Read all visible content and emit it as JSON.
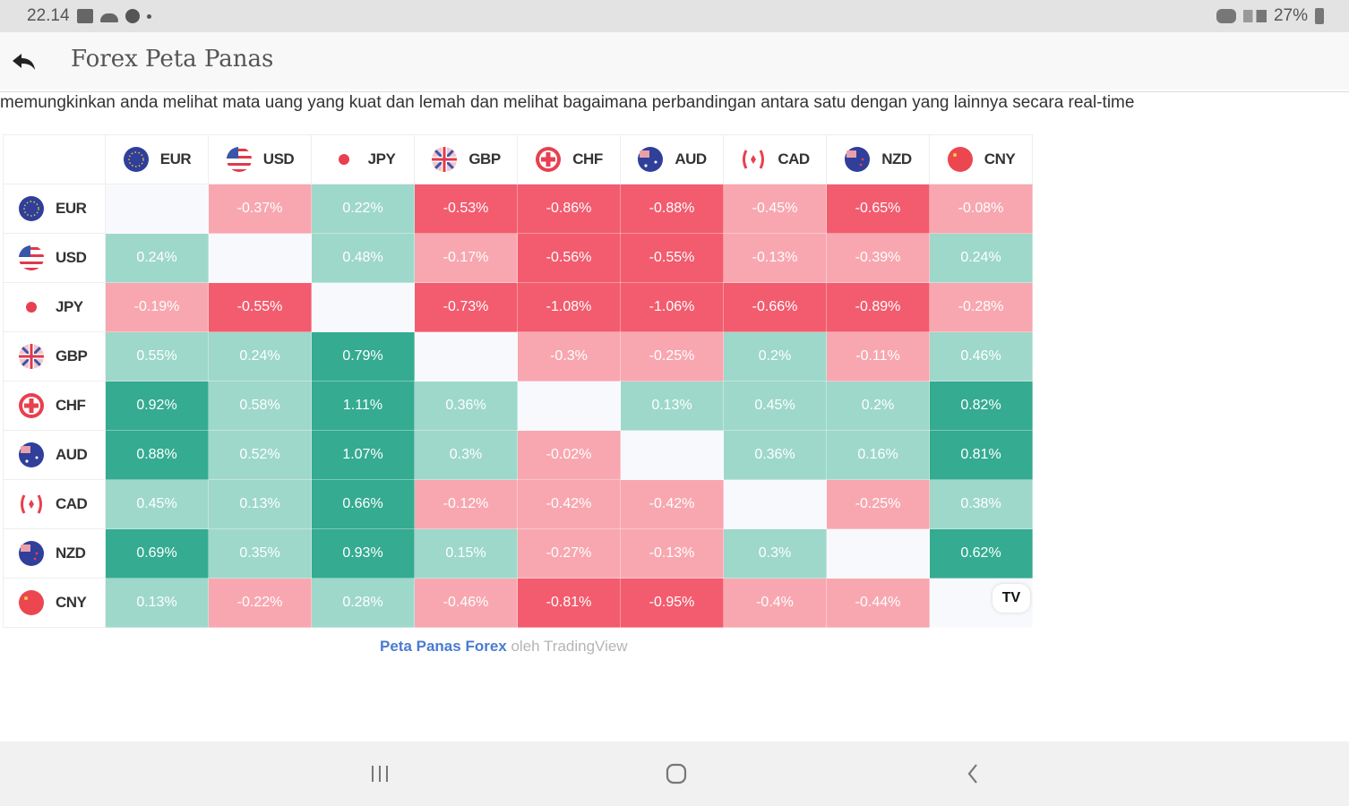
{
  "status_bar": {
    "time": "22.14",
    "battery": "27%",
    "left_icons": [
      "gallery-icon",
      "cloud-icon",
      "vpn-icon",
      "dot-icon"
    ],
    "right_icons": [
      "gamepad-icon",
      "signal-icon",
      "battery-icon"
    ]
  },
  "app_bar": {
    "back_icon": "reply-arrow-icon",
    "title": "Forex Peta Panas"
  },
  "description": "memungkinkan anda melihat mata uang yang kuat dan lemah dan melihat bagaimana perbandingan antara satu dengan yang lainnya secara real-time",
  "colors": {
    "strong_negative": "#f25c6e",
    "weak_negative": "#f8a7b0",
    "weak_positive": "#9ed8ca",
    "strong_positive": "#35ab91",
    "empty": "#f8f9fc",
    "link": "#4a7bd0"
  },
  "chart_data": {
    "type": "heatmap",
    "title": "Forex Peta Panas",
    "x_labels": [
      "EUR",
      "USD",
      "JPY",
      "GBP",
      "CHF",
      "AUD",
      "CAD",
      "NZD",
      "CNY"
    ],
    "y_labels": [
      "EUR",
      "USD",
      "JPY",
      "GBP",
      "CHF",
      "AUD",
      "CAD",
      "NZD",
      "CNY"
    ],
    "unit": "%",
    "values": [
      [
        null,
        -0.37,
        0.22,
        -0.53,
        -0.86,
        -0.88,
        -0.45,
        -0.65,
        -0.08
      ],
      [
        0.24,
        null,
        0.48,
        -0.17,
        -0.56,
        -0.55,
        -0.13,
        -0.39,
        0.24
      ],
      [
        -0.19,
        -0.55,
        null,
        -0.73,
        -1.08,
        -1.06,
        -0.66,
        -0.89,
        -0.28
      ],
      [
        0.55,
        0.24,
        0.79,
        null,
        -0.3,
        -0.25,
        0.2,
        -0.11,
        0.46
      ],
      [
        0.92,
        0.58,
        1.11,
        0.36,
        null,
        0.13,
        0.45,
        0.2,
        0.82
      ],
      [
        0.88,
        0.52,
        1.07,
        0.3,
        -0.02,
        null,
        0.36,
        0.16,
        0.81
      ],
      [
        0.45,
        0.13,
        0.66,
        -0.12,
        -0.42,
        -0.42,
        null,
        -0.25,
        0.38
      ],
      [
        0.69,
        0.35,
        0.93,
        0.15,
        -0.27,
        -0.13,
        0.3,
        null,
        0.62
      ],
      [
        0.13,
        -0.22,
        0.28,
        -0.46,
        -0.81,
        -0.95,
        -0.4,
        -0.44,
        null
      ]
    ],
    "display": [
      [
        "",
        "-0.37%",
        "0.22%",
        "-0.53%",
        "-0.86%",
        "-0.88%",
        "-0.45%",
        "-0.65%",
        "-0.08%"
      ],
      [
        "0.24%",
        "",
        "0.48%",
        "-0.17%",
        "-0.56%",
        "-0.55%",
        "-0.13%",
        "-0.39%",
        "0.24%"
      ],
      [
        "-0.19%",
        "-0.55%",
        "",
        "-0.73%",
        "-1.08%",
        "-1.06%",
        "-0.66%",
        "-0.89%",
        "-0.28%"
      ],
      [
        "0.55%",
        "0.24%",
        "0.79%",
        "",
        "-0.3%",
        "-0.25%",
        "0.2%",
        "-0.11%",
        "0.46%"
      ],
      [
        "0.92%",
        "0.58%",
        "1.11%",
        "0.36%",
        "",
        "0.13%",
        "0.45%",
        "0.2%",
        "0.82%"
      ],
      [
        "0.88%",
        "0.52%",
        "1.07%",
        "0.3%",
        "-0.02%",
        "",
        "0.36%",
        "0.16%",
        "0.81%"
      ],
      [
        "0.45%",
        "0.13%",
        "0.66%",
        "-0.12%",
        "-0.42%",
        "-0.42%",
        "",
        "-0.25%",
        "0.38%"
      ],
      [
        "0.69%",
        "0.35%",
        "0.93%",
        "0.15%",
        "-0.27%",
        "-0.13%",
        "0.3%",
        "",
        "0.62%"
      ],
      [
        "0.13%",
        "-0.22%",
        "0.28%",
        "-0.46%",
        "-0.81%",
        "-0.95%",
        "-0.4%",
        "-0.44%",
        ""
      ]
    ],
    "flag_icons": [
      "eu-flag-icon",
      "us-flag-icon",
      "japan-flag-icon",
      "uk-flag-icon",
      "swiss-flag-icon",
      "australia-flag-icon",
      "canada-flag-icon",
      "new-zealand-flag-icon",
      "china-flag-icon"
    ]
  },
  "attribution": {
    "link_text": "Peta Panas Forex",
    "suffix": " oleh TradingView",
    "logo_text": "TV"
  },
  "nav_bar": {
    "recents_icon": "recents-icon",
    "home_icon": "home-icon",
    "back_icon": "back-chevron-icon"
  }
}
